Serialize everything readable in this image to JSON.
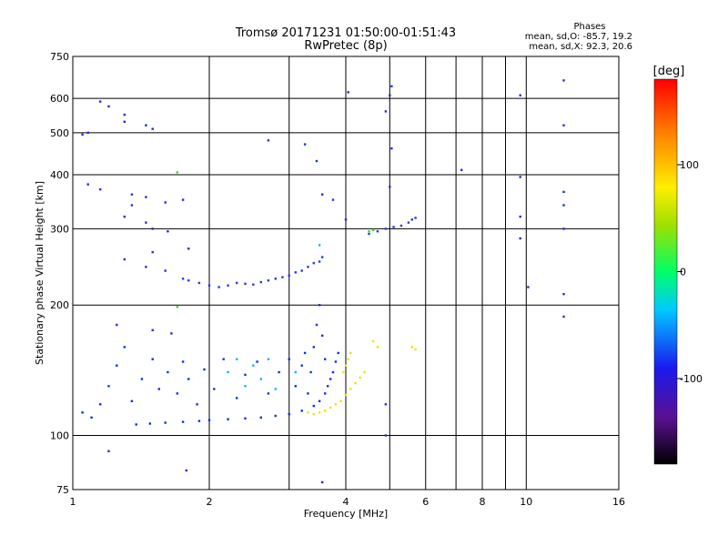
{
  "chart_data": {
    "type": "scatter",
    "title": "Tromsø 20171231 01:50:00-01:51:43",
    "subtitle": "RwPretec (8p)",
    "xlabel": "Frequency [MHz]",
    "ylabel": "Stationary phase Virtual Height [km]",
    "xscale": "log",
    "yscale": "log",
    "xlim": [
      1,
      16
    ],
    "ylim": [
      75,
      750
    ],
    "x_ticks": [
      1,
      2,
      4,
      6,
      8,
      10,
      16
    ],
    "y_ticks": [
      75,
      100,
      200,
      300,
      400,
      500,
      600,
      750
    ],
    "grid": true,
    "stats": {
      "heading": "Phases",
      "o_line": "mean, sd,O: -85.7, 19.2",
      "x_line": "mean, sd,X:  92.3, 20.6"
    },
    "colorbar": {
      "label": "[deg]",
      "range": [
        -180,
        180
      ],
      "ticks": [
        -100,
        0,
        100
      ],
      "tick_labels": [
        "-100",
        "0",
        "100"
      ]
    },
    "series": [
      {
        "trace": "blue-lower",
        "color": "#1030e0",
        "points": [
          [
            1.38,
            106
          ],
          [
            1.48,
            106.5
          ],
          [
            1.6,
            107
          ],
          [
            1.75,
            107.5
          ],
          [
            1.9,
            108
          ],
          [
            2.0,
            108.5
          ],
          [
            2.2,
            109
          ],
          [
            2.4,
            109.5
          ],
          [
            2.6,
            110
          ],
          [
            2.8,
            111
          ],
          [
            3.0,
            112
          ],
          [
            3.2,
            114
          ],
          [
            3.4,
            117
          ],
          [
            3.5,
            120
          ],
          [
            3.6,
            125
          ],
          [
            3.65,
            130
          ],
          [
            3.7,
            135
          ],
          [
            3.75,
            140
          ],
          [
            3.8,
            148
          ],
          [
            3.85,
            155
          ],
          [
            3.3,
            125
          ],
          [
            3.35,
            140
          ],
          [
            3.4,
            160
          ],
          [
            3.45,
            180
          ],
          [
            3.5,
            200
          ],
          [
            3.55,
            170
          ],
          [
            3.6,
            150
          ],
          [
            1.15,
            118
          ],
          [
            1.2,
            130
          ],
          [
            1.25,
            145
          ],
          [
            1.3,
            160
          ],
          [
            1.35,
            120
          ],
          [
            1.42,
            135
          ],
          [
            1.5,
            150
          ],
          [
            1.55,
            128
          ],
          [
            1.62,
            140
          ],
          [
            1.7,
            125
          ],
          [
            1.75,
            148
          ],
          [
            1.8,
            135
          ],
          [
            1.88,
            118
          ],
          [
            1.95,
            142
          ],
          [
            2.05,
            128
          ],
          [
            2.15,
            150
          ],
          [
            2.3,
            122
          ],
          [
            2.4,
            138
          ],
          [
            2.55,
            148
          ],
          [
            2.7,
            125
          ],
          [
            2.85,
            140
          ],
          [
            3.0,
            150
          ],
          [
            3.1,
            130
          ],
          [
            3.2,
            145
          ],
          [
            3.25,
            155
          ],
          [
            1.1,
            110
          ],
          [
            1.05,
            113
          ]
        ]
      },
      {
        "trace": "blue-upper",
        "color": "#2a3ad8",
        "points": [
          [
            2.0,
            222
          ],
          [
            2.1,
            220
          ],
          [
            2.2,
            222
          ],
          [
            2.3,
            225
          ],
          [
            2.4,
            224
          ],
          [
            2.5,
            223
          ],
          [
            2.6,
            226
          ],
          [
            2.7,
            228
          ],
          [
            2.8,
            230
          ],
          [
            2.9,
            232
          ],
          [
            3.0,
            234
          ],
          [
            3.1,
            238
          ],
          [
            3.2,
            240
          ],
          [
            3.3,
            245
          ],
          [
            3.4,
            250
          ],
          [
            3.5,
            252
          ],
          [
            3.55,
            258
          ],
          [
            1.75,
            230
          ],
          [
            1.8,
            228
          ],
          [
            1.9,
            225
          ],
          [
            4.5,
            292
          ],
          [
            4.7,
            296
          ],
          [
            4.9,
            300
          ],
          [
            5.1,
            303
          ],
          [
            5.3,
            305
          ],
          [
            5.5,
            310
          ],
          [
            5.6,
            315
          ],
          [
            5.7,
            318
          ]
        ]
      },
      {
        "trace": "yellow",
        "color": "#f0e010",
        "points": [
          [
            3.3,
            113
          ],
          [
            3.4,
            112
          ],
          [
            3.5,
            113
          ],
          [
            3.6,
            114
          ],
          [
            3.7,
            116
          ],
          [
            3.8,
            118
          ],
          [
            3.9,
            120
          ],
          [
            4.0,
            124
          ],
          [
            4.1,
            128
          ],
          [
            4.2,
            132
          ],
          [
            4.3,
            136
          ],
          [
            4.4,
            140
          ],
          [
            4.0,
            145
          ],
          [
            3.95,
            140
          ],
          [
            4.05,
            150
          ],
          [
            4.1,
            155
          ],
          [
            4.6,
            165
          ],
          [
            4.7,
            160
          ],
          [
            5.6,
            160
          ],
          [
            5.7,
            158
          ]
        ]
      },
      {
        "trace": "cyan-mid",
        "color": "#10b8e8",
        "points": [
          [
            2.2,
            140
          ],
          [
            2.3,
            150
          ],
          [
            2.4,
            130
          ],
          [
            2.5,
            145
          ],
          [
            2.6,
            135
          ],
          [
            2.7,
            150
          ],
          [
            2.8,
            128
          ],
          [
            3.1,
            140
          ],
          [
            3.5,
            275
          ]
        ]
      },
      {
        "trace": "green",
        "color": "#40d040",
        "points": [
          [
            4.5,
            296
          ],
          [
            4.6,
            298
          ],
          [
            1.7,
            198
          ],
          [
            1.7,
            405
          ]
        ]
      },
      {
        "trace": "scattered",
        "color": "#2030d0",
        "points": [
          [
            1.15,
            590
          ],
          [
            1.2,
            575
          ],
          [
            1.3,
            550
          ],
          [
            1.3,
            530
          ],
          [
            1.45,
            520
          ],
          [
            1.5,
            510
          ],
          [
            1.08,
            500
          ],
          [
            1.05,
            495
          ],
          [
            1.08,
            380
          ],
          [
            1.15,
            370
          ],
          [
            1.35,
            360
          ],
          [
            1.45,
            355
          ],
          [
            1.6,
            345
          ],
          [
            1.75,
            350
          ],
          [
            1.35,
            340
          ],
          [
            1.3,
            320
          ],
          [
            1.45,
            310
          ],
          [
            1.5,
            300
          ],
          [
            1.62,
            296
          ],
          [
            1.3,
            255
          ],
          [
            1.5,
            265
          ],
          [
            1.45,
            245
          ],
          [
            1.6,
            240
          ],
          [
            1.8,
            270
          ],
          [
            1.25,
            180
          ],
          [
            1.5,
            175
          ],
          [
            1.65,
            172
          ],
          [
            1.2,
            92
          ],
          [
            1.78,
            83
          ],
          [
            3.55,
            78
          ],
          [
            2.7,
            480
          ],
          [
            3.25,
            470
          ],
          [
            3.45,
            430
          ],
          [
            3.55,
            360
          ],
          [
            3.75,
            350
          ],
          [
            4.0,
            315
          ],
          [
            5.0,
            375
          ],
          [
            5.05,
            460
          ],
          [
            5.0,
            610
          ],
          [
            5.05,
            640
          ],
          [
            4.05,
            620
          ],
          [
            4.9,
            560
          ],
          [
            7.2,
            410
          ],
          [
            9.7,
            610
          ],
          [
            9.7,
            395
          ],
          [
            9.7,
            320
          ],
          [
            9.7,
            285
          ],
          [
            10.1,
            220
          ],
          [
            12.1,
            660
          ],
          [
            12.1,
            520
          ],
          [
            12.1,
            365
          ],
          [
            12.1,
            340
          ],
          [
            12.1,
            300
          ],
          [
            12.1,
            212
          ],
          [
            12.1,
            188
          ],
          [
            4.9,
            100
          ],
          [
            4.9,
            118
          ]
        ]
      }
    ]
  }
}
